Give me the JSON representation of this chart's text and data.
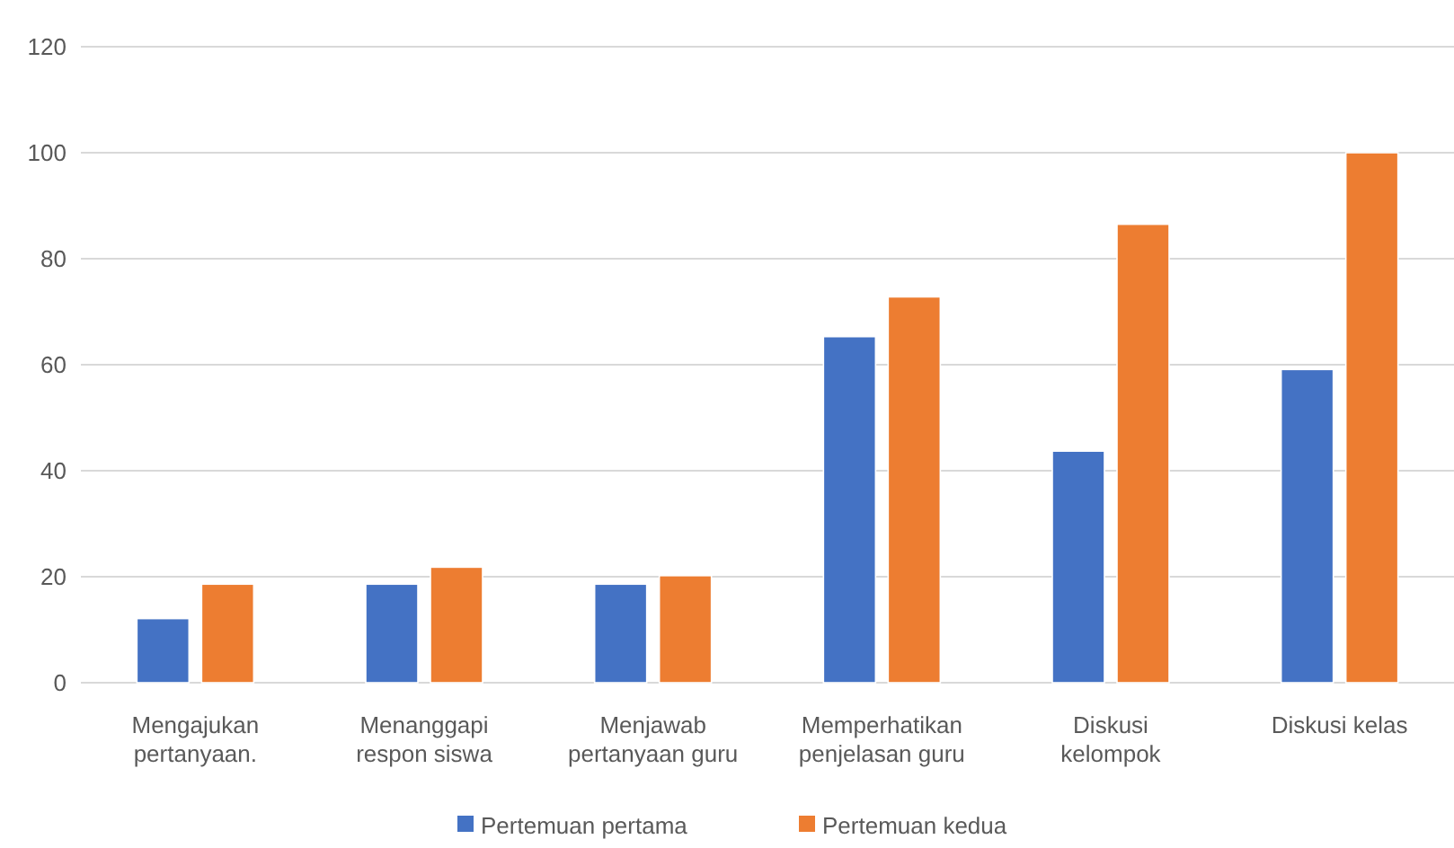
{
  "chart_data": {
    "type": "bar",
    "categories": [
      "Mengajukan pertanyaan.",
      "Menanggapi respon siswa",
      "Menjawab pertanyaan guru",
      "Memperhatikan penjelasan guru",
      "Diskusi kelompok",
      "Diskusi kelas"
    ],
    "series": [
      {
        "name": "Pertemuan pertama",
        "color": "#4472c4",
        "values": [
          12.1,
          18.6,
          18.6,
          65.3,
          43.7,
          59.1
        ]
      },
      {
        "name": "Pertemuan kedua",
        "color": "#ed7d31",
        "values": [
          18.6,
          21.8,
          20.2,
          72.8,
          86.5,
          100
        ]
      }
    ],
    "ylim": [
      0,
      120
    ],
    "yticks": [
      0,
      20,
      40,
      60,
      80,
      100,
      120
    ],
    "grid": "y",
    "legend": "bottom"
  }
}
